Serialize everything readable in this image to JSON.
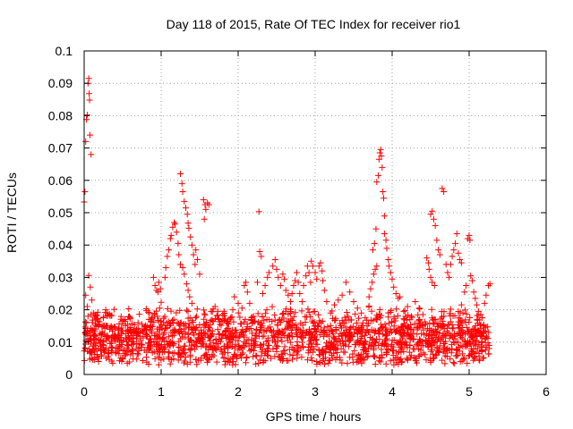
{
  "chart_data": {
    "type": "scatter",
    "title": "Day 118 of 2015, Rate Of TEC Index for receiver rio1",
    "xlabel": "GPS time / hours",
    "ylabel": "ROTI / TECUs",
    "xlim": [
      0,
      6
    ],
    "ylim": [
      0,
      0.1
    ],
    "x_ticks": [
      0,
      1,
      2,
      3,
      4,
      5,
      6
    ],
    "x_tick_labels": [
      "0",
      "1",
      "2",
      "3",
      "4",
      "5",
      "6"
    ],
    "y_ticks": [
      0,
      0.01,
      0.02,
      0.03,
      0.04,
      0.05,
      0.06,
      0.07,
      0.08,
      0.09,
      0.1
    ],
    "y_tick_labels": [
      "0",
      "0.01",
      "0.02",
      "0.03",
      "0.04",
      "0.05",
      "0.06",
      "0.07",
      "0.08",
      "0.09",
      "0.1"
    ],
    "grid": true,
    "marker": "+",
    "marker_color": "#ff0000",
    "series": [
      {
        "name": "ROTI",
        "points": [
          [
            0.0,
            0.0533
          ],
          [
            0.01,
            0.0565
          ],
          [
            0.02,
            0.072
          ],
          [
            0.03,
            0.0788
          ],
          [
            0.04,
            0.0802
          ],
          [
            0.05,
            0.09
          ],
          [
            0.06,
            0.0915
          ],
          [
            0.065,
            0.0868
          ],
          [
            0.07,
            0.0848
          ],
          [
            0.075,
            0.074
          ],
          [
            0.09,
            0.068
          ],
          [
            0.02,
            0.0245
          ],
          [
            0.04,
            0.021
          ],
          [
            0.06,
            0.0306
          ],
          [
            0.08,
            0.027
          ],
          [
            0.1,
            0.023
          ],
          [
            0.12,
            0.019
          ],
          [
            0.05,
            0.018
          ],
          [
            0.03,
            0.016
          ],
          [
            0.09,
            0.0185
          ],
          [
            0.11,
            0.0168
          ],
          [
            0.15,
            0.012
          ],
          [
            0.2,
            0.0155
          ],
          [
            0.25,
            0.0175
          ],
          [
            0.28,
            0.02
          ],
          [
            0.3,
            0.019
          ],
          [
            0.35,
            0.015
          ],
          [
            0.4,
            0.011
          ],
          [
            0.45,
            0.012
          ],
          [
            0.5,
            0.0135
          ],
          [
            0.55,
            0.011
          ],
          [
            0.6,
            0.0145
          ],
          [
            0.65,
            0.013
          ],
          [
            0.7,
            0.016
          ],
          [
            0.75,
            0.0155
          ],
          [
            0.8,
            0.0125
          ],
          [
            0.85,
            0.014
          ],
          [
            0.9,
            0.03
          ],
          [
            0.92,
            0.0275
          ],
          [
            0.94,
            0.026
          ],
          [
            0.96,
            0.0255
          ],
          [
            0.97,
            0.0285
          ],
          [
            0.99,
            0.0265
          ],
          [
            1.0,
            0.0223
          ],
          [
            0.95,
            0.018
          ],
          [
            0.98,
            0.0205
          ],
          [
            0.88,
            0.0175
          ],
          [
            0.97,
            0.003
          ],
          [
            1.05,
            0.03
          ],
          [
            1.06,
            0.033
          ],
          [
            1.08,
            0.0365
          ],
          [
            1.1,
            0.0385
          ],
          [
            1.12,
            0.042
          ],
          [
            1.13,
            0.043
          ],
          [
            1.15,
            0.0455
          ],
          [
            1.17,
            0.047
          ],
          [
            1.18,
            0.0465
          ],
          [
            1.2,
            0.044
          ],
          [
            1.22,
            0.0405
          ],
          [
            1.23,
            0.037
          ],
          [
            1.25,
            0.034
          ],
          [
            1.25,
            0.062
          ],
          [
            1.27,
            0.059
          ],
          [
            1.28,
            0.0565
          ],
          [
            1.3,
            0.0535
          ],
          [
            1.32,
            0.0515
          ],
          [
            1.34,
            0.0495
          ],
          [
            1.35,
            0.0468
          ],
          [
            1.36,
            0.0452
          ],
          [
            1.38,
            0.0425
          ],
          [
            1.4,
            0.04
          ],
          [
            1.42,
            0.037
          ],
          [
            1.44,
            0.034
          ],
          [
            1.28,
            0.033
          ],
          [
            1.3,
            0.031
          ],
          [
            1.33,
            0.028
          ],
          [
            1.35,
            0.026
          ],
          [
            1.37,
            0.024
          ],
          [
            1.4,
            0.022
          ],
          [
            1.45,
            0.0385
          ],
          [
            1.47,
            0.0355
          ],
          [
            1.5,
            0.031
          ],
          [
            1.55,
            0.054
          ],
          [
            1.57,
            0.0525
          ],
          [
            1.58,
            0.051
          ],
          [
            1.6,
            0.053
          ],
          [
            1.62,
            0.0525
          ],
          [
            1.56,
            0.048
          ],
          [
            1.65,
            0.0195
          ],
          [
            1.7,
            0.021
          ],
          [
            1.75,
            0.017
          ],
          [
            1.8,
            0.0185
          ],
          [
            1.85,
            0.016
          ],
          [
            1.9,
            0.0175
          ],
          [
            1.95,
            0.024
          ],
          [
            2.0,
            0.022
          ],
          [
            2.05,
            0.0205
          ],
          [
            2.08,
            0.0275
          ],
          [
            2.1,
            0.0285
          ],
          [
            2.12,
            0.0255
          ],
          [
            2.15,
            0.022
          ],
          [
            2.2,
            0.018
          ],
          [
            2.22,
            0.0165
          ],
          [
            2.27,
            0.0503
          ],
          [
            2.28,
            0.038
          ],
          [
            2.3,
            0.0365
          ],
          [
            2.25,
            0.0285
          ],
          [
            2.32,
            0.025
          ],
          [
            2.35,
            0.0275
          ],
          [
            2.38,
            0.03
          ],
          [
            2.4,
            0.0315
          ],
          [
            2.45,
            0.0335
          ],
          [
            2.48,
            0.0355
          ],
          [
            2.5,
            0.0325
          ],
          [
            2.52,
            0.03
          ],
          [
            2.55,
            0.0275
          ],
          [
            2.58,
            0.031
          ],
          [
            2.6,
            0.0295
          ],
          [
            2.62,
            0.026
          ],
          [
            2.65,
            0.0245
          ],
          [
            2.68,
            0.0225
          ],
          [
            2.7,
            0.025
          ],
          [
            2.72,
            0.0275
          ],
          [
            2.74,
            0.029
          ],
          [
            2.76,
            0.0315
          ],
          [
            2.78,
            0.0285
          ],
          [
            2.8,
            0.025
          ],
          [
            2.83,
            0.0225
          ],
          [
            2.85,
            0.0275
          ],
          [
            2.88,
            0.0305
          ],
          [
            2.9,
            0.0335
          ],
          [
            2.92,
            0.0315
          ],
          [
            2.94,
            0.0285
          ],
          [
            2.95,
            0.035
          ],
          [
            2.97,
            0.0335
          ],
          [
            3.0,
            0.0315
          ],
          [
            3.02,
            0.0295
          ],
          [
            3.05,
            0.0335
          ],
          [
            3.07,
            0.0345
          ],
          [
            3.09,
            0.032
          ],
          [
            3.1,
            0.029
          ],
          [
            3.12,
            0.026
          ],
          [
            3.15,
            0.0225
          ],
          [
            3.2,
            0.019
          ],
          [
            3.25,
            0.0215
          ],
          [
            3.3,
            0.023
          ],
          [
            3.35,
            0.0245
          ],
          [
            3.4,
            0.0285
          ],
          [
            3.45,
            0.0255
          ],
          [
            3.5,
            0.0225
          ],
          [
            3.55,
            0.0205
          ],
          [
            3.6,
            0.019
          ],
          [
            3.65,
            0.0175
          ],
          [
            3.7,
            0.024
          ],
          [
            3.72,
            0.0265
          ],
          [
            3.74,
            0.0285
          ],
          [
            3.76,
            0.031
          ],
          [
            3.78,
            0.0325
          ],
          [
            3.8,
            0.0335
          ],
          [
            3.75,
            0.0385
          ],
          [
            3.77,
            0.0405
          ],
          [
            3.79,
            0.045
          ],
          [
            3.8,
            0.0595
          ],
          [
            3.82,
            0.0615
          ],
          [
            3.83,
            0.0665
          ],
          [
            3.84,
            0.0685
          ],
          [
            3.85,
            0.0695
          ],
          [
            3.86,
            0.0675
          ],
          [
            3.87,
            0.064
          ],
          [
            3.88,
            0.0565
          ],
          [
            3.89,
            0.0545
          ],
          [
            3.9,
            0.049
          ],
          [
            3.9,
            0.0435
          ],
          [
            3.92,
            0.0415
          ],
          [
            3.93,
            0.039
          ],
          [
            3.95,
            0.0355
          ],
          [
            3.96,
            0.0335
          ],
          [
            3.98,
            0.0315
          ],
          [
            4.0,
            0.0295
          ],
          [
            4.02,
            0.027
          ],
          [
            4.05,
            0.025
          ],
          [
            4.08,
            0.0235
          ],
          [
            4.1,
            0.024
          ],
          [
            4.15,
            0.0195
          ],
          [
            4.2,
            0.021
          ],
          [
            4.25,
            0.018
          ],
          [
            4.3,
            0.0225
          ],
          [
            4.35,
            0.0205
          ],
          [
            4.4,
            0.0185
          ],
          [
            4.45,
            0.036
          ],
          [
            4.47,
            0.0345
          ],
          [
            4.48,
            0.0325
          ],
          [
            4.5,
            0.03
          ],
          [
            4.52,
            0.0285
          ],
          [
            4.55,
            0.0275
          ],
          [
            4.5,
            0.0495
          ],
          [
            4.52,
            0.0505
          ],
          [
            4.54,
            0.048
          ],
          [
            4.56,
            0.046
          ],
          [
            4.58,
            0.0415
          ],
          [
            4.6,
            0.0385
          ],
          [
            4.62,
            0.037
          ],
          [
            4.65,
            0.0575
          ],
          [
            4.67,
            0.0565
          ],
          [
            4.7,
            0.034
          ],
          [
            4.72,
            0.0315
          ],
          [
            4.74,
            0.03
          ],
          [
            4.76,
            0.034
          ],
          [
            4.78,
            0.0365
          ],
          [
            4.8,
            0.0385
          ],
          [
            4.82,
            0.0405
          ],
          [
            4.84,
            0.0435
          ],
          [
            4.86,
            0.0375
          ],
          [
            4.88,
            0.0355
          ],
          [
            4.9,
            0.0345
          ],
          [
            4.9,
            0.0215
          ],
          [
            4.92,
            0.019
          ],
          [
            4.94,
            0.0255
          ],
          [
            4.96,
            0.0275
          ],
          [
            4.98,
            0.042
          ],
          [
            5.0,
            0.043
          ],
          [
            5.01,
            0.0415
          ],
          [
            5.02,
            0.0305
          ],
          [
            5.04,
            0.029
          ],
          [
            5.06,
            0.0255
          ],
          [
            5.08,
            0.0235
          ],
          [
            5.1,
            0.0215
          ],
          [
            5.12,
            0.0195
          ],
          [
            5.15,
            0.0185
          ],
          [
            5.2,
            0.022
          ],
          [
            5.22,
            0.0245
          ],
          [
            5.25,
            0.0275
          ],
          [
            5.27,
            0.028
          ],
          [
            5.18,
            0.005
          ],
          [
            5.22,
            0.0085
          ],
          [
            5.26,
            0.009
          ],
          [
            3.02,
            0.004
          ],
          [
            2.55,
            0.0045
          ],
          [
            0.18,
            0.005
          ],
          [
            1.6,
            0.0055
          ],
          [
            4.3,
            0.005
          ]
        ],
        "baseline_band": {
          "x_range": [
            0,
            5.27
          ],
          "y_center": 0.0105,
          "y_spread": 0.0045,
          "upper_fringe": 0.019,
          "n_points": 1800
        }
      }
    ]
  }
}
